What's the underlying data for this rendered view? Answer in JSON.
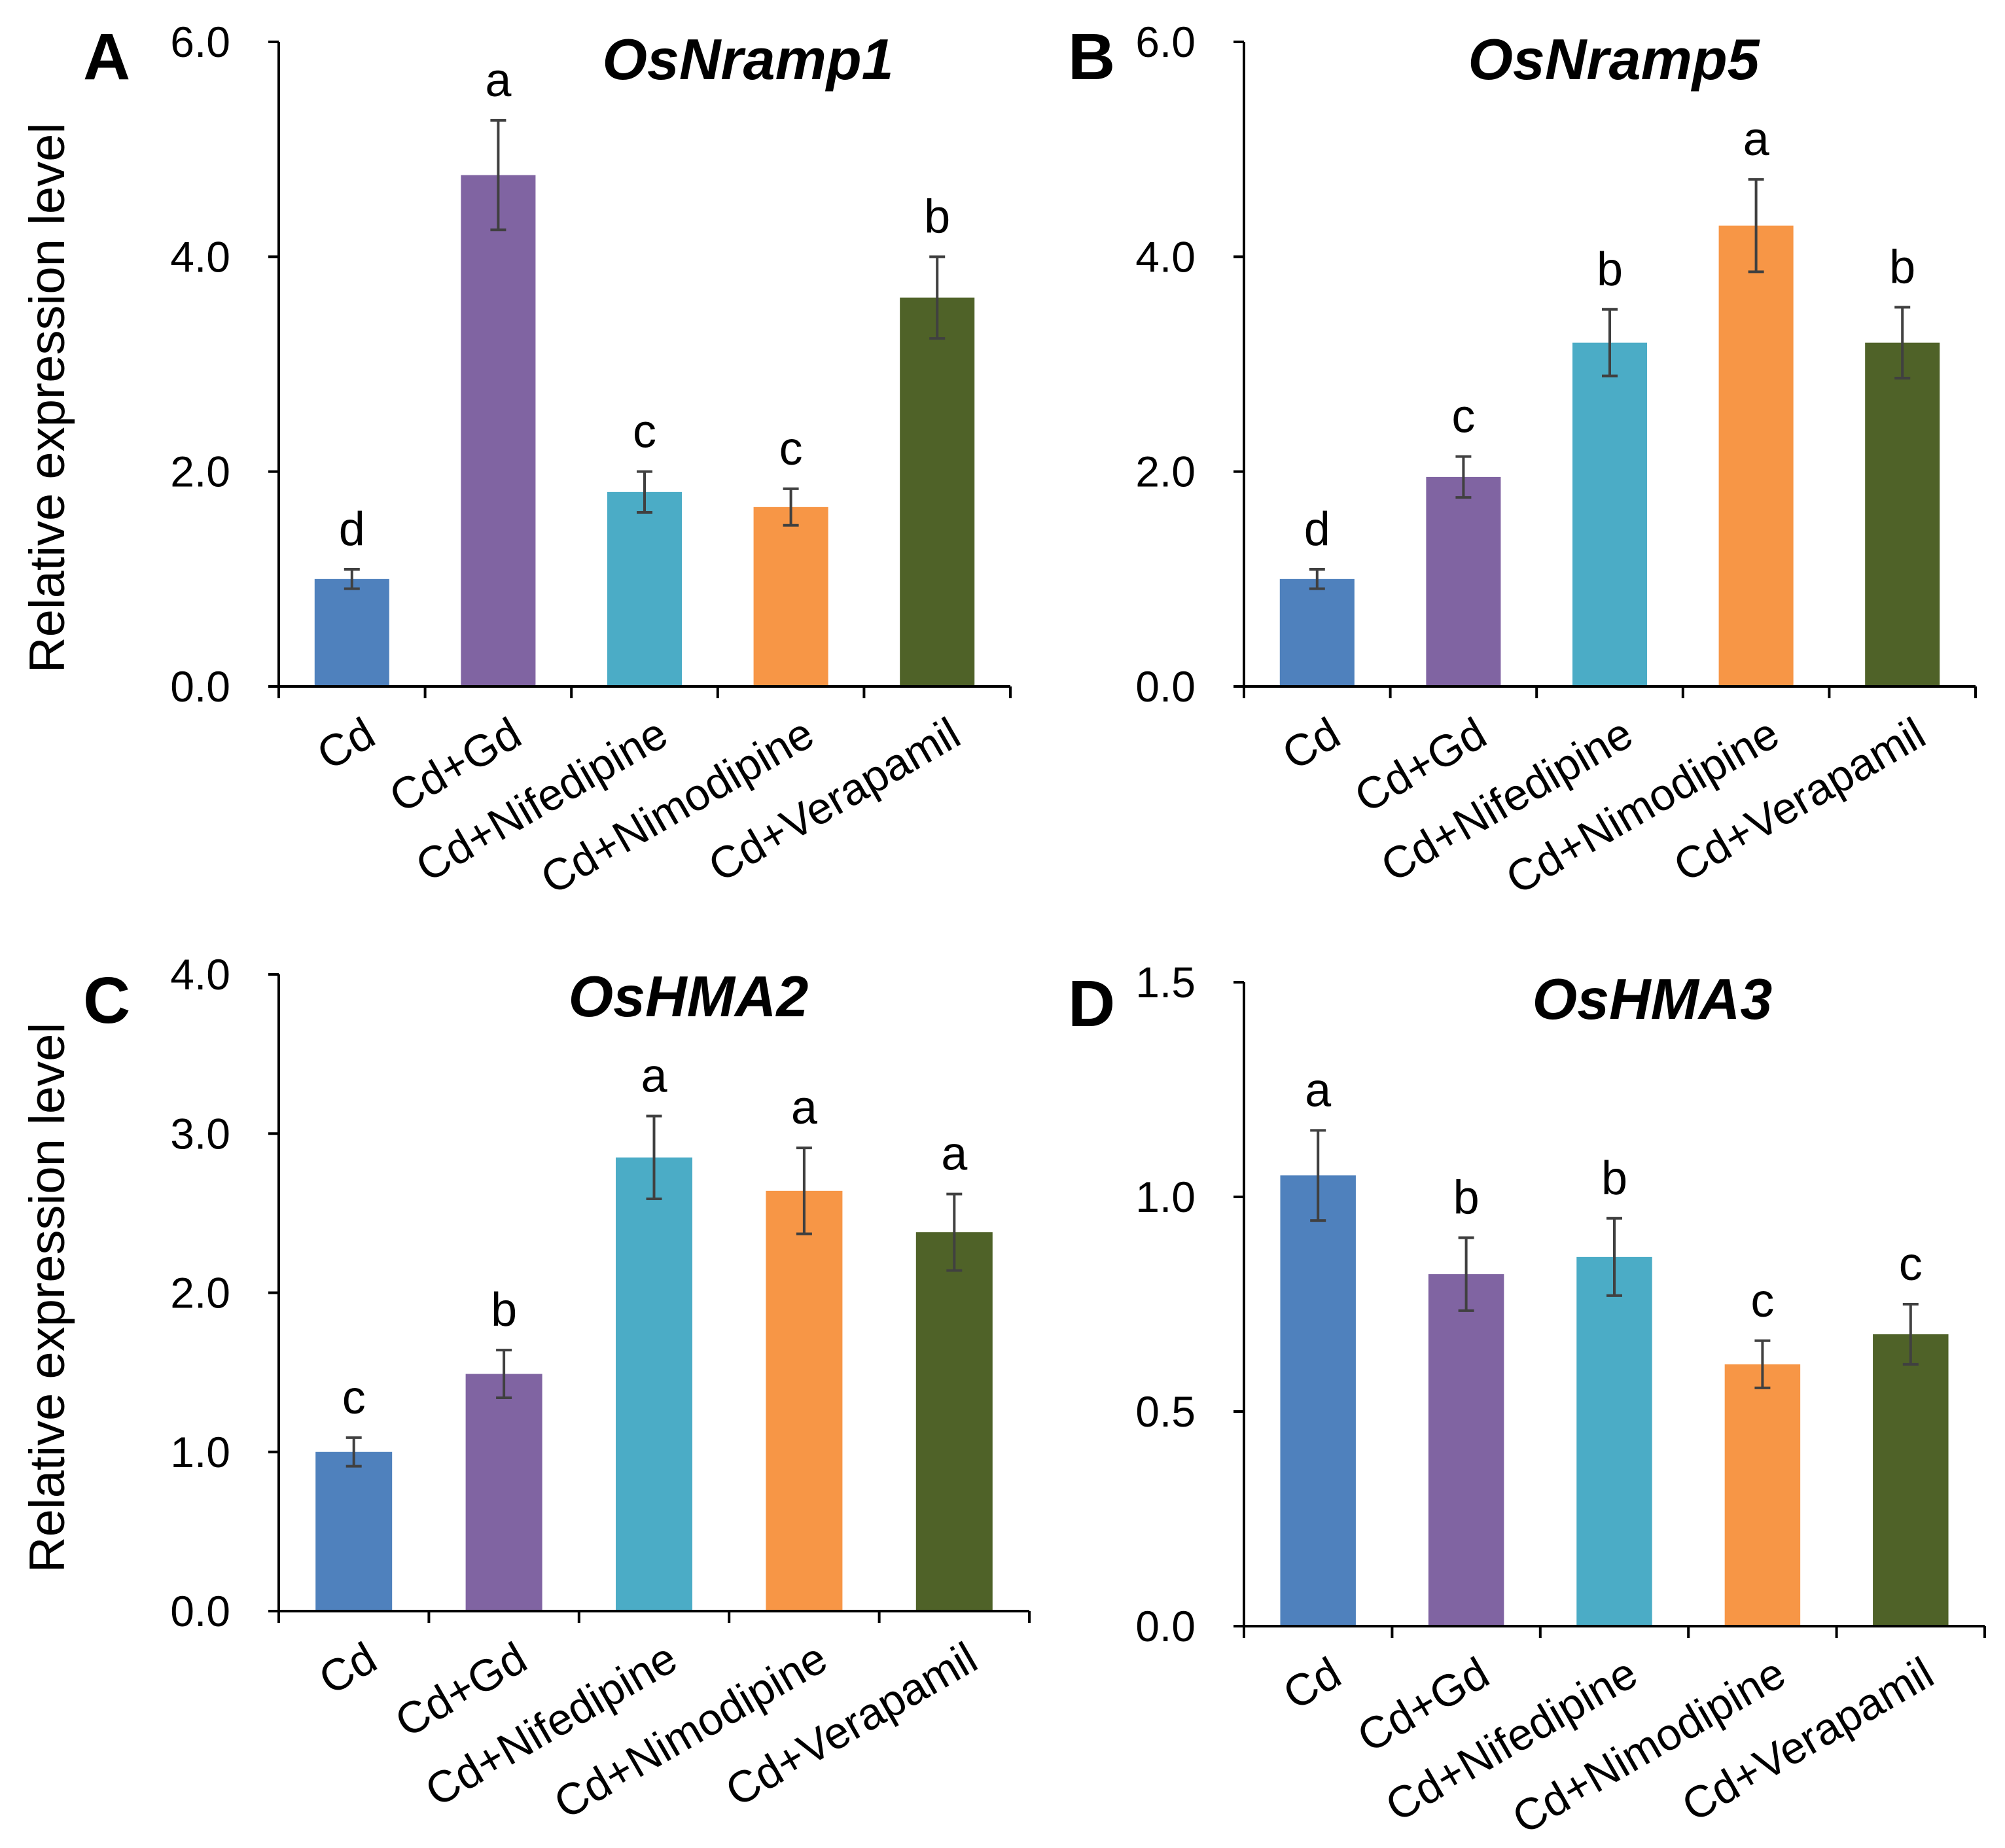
{
  "style": {
    "axis_color": "#000000",
    "error_bar_color": "#404040"
  },
  "chart_data": [
    {
      "panel": "A",
      "type": "bar",
      "title": "OsNramp1",
      "ylabel": "Relative expression level",
      "categories": [
        "Cd",
        "Cd+Gd",
        "Cd+Nifedipine",
        "Cd+Nimodipine",
        "Cd+Verapamil"
      ],
      "values": [
        1.0,
        4.76,
        1.81,
        1.67,
        3.62
      ],
      "errors": [
        0.09,
        0.51,
        0.19,
        0.17,
        0.38
      ],
      "significance": [
        "d",
        "a",
        "c",
        "c",
        "b"
      ],
      "ylim": [
        0,
        6
      ],
      "yticks": [
        0,
        2,
        4,
        6
      ],
      "ytick_labels": [
        "0.0",
        "2.0",
        "4.0",
        "6.0"
      ],
      "bar_colors": [
        "#4F81BD",
        "#8064A2",
        "#4BACC6",
        "#F79646",
        "#4F6228"
      ]
    },
    {
      "panel": "B",
      "type": "bar",
      "title": "OsNramp5",
      "categories": [
        "Cd",
        "Cd+Gd",
        "Cd+Nifedipine",
        "Cd+Nimodipine",
        "Cd+Verapamil"
      ],
      "values": [
        1.0,
        1.95,
        3.2,
        4.29,
        3.2
      ],
      "errors": [
        0.09,
        0.19,
        0.31,
        0.43,
        0.33
      ],
      "significance": [
        "d",
        "c",
        "b",
        "a",
        "b"
      ],
      "ylim": [
        0,
        6
      ],
      "yticks": [
        0,
        2,
        4,
        6
      ],
      "ytick_labels": [
        "0.0",
        "2.0",
        "4.0",
        "6.0"
      ],
      "bar_colors": [
        "#4F81BD",
        "#8064A2",
        "#4BACC6",
        "#F79646",
        "#4F6228"
      ]
    },
    {
      "panel": "C",
      "type": "bar",
      "title": "OsHMA2",
      "ylabel": "Relative expression level",
      "categories": [
        "Cd",
        "Cd+Gd",
        "Cd+Nifedipine",
        "Cd+Nimodipine",
        "Cd+Verapamil"
      ],
      "values": [
        1.0,
        1.49,
        2.85,
        2.64,
        2.38
      ],
      "errors": [
        0.09,
        0.15,
        0.26,
        0.27,
        0.24
      ],
      "significance": [
        "c",
        "b",
        "a",
        "a",
        "a"
      ],
      "ylim": [
        0,
        4
      ],
      "yticks": [
        0,
        1,
        2,
        3,
        4
      ],
      "ytick_labels": [
        "0.0",
        "1.0",
        "2.0",
        "3.0",
        "4.0"
      ],
      "bar_colors": [
        "#4F81BD",
        "#8064A2",
        "#4BACC6",
        "#F79646",
        "#4F6228"
      ]
    },
    {
      "panel": "D",
      "type": "bar",
      "title": "OsHMA3",
      "categories": [
        "Cd",
        "Cd+Gd",
        "Cd+Nifedipine",
        "Cd+Nimodipine",
        "Cd+Verapamil"
      ],
      "values": [
        1.05,
        0.82,
        0.86,
        0.61,
        0.68
      ],
      "errors": [
        0.105,
        0.085,
        0.09,
        0.055,
        0.07
      ],
      "significance": [
        "a",
        "b",
        "b",
        "c",
        "c"
      ],
      "ylim": [
        0,
        1.5
      ],
      "yticks": [
        0,
        0.5,
        1.0,
        1.5
      ],
      "ytick_labels": [
        "0.0",
        "0.5",
        "1.0",
        "1.5"
      ],
      "bar_colors": [
        "#4F81BD",
        "#8064A2",
        "#4BACC6",
        "#F79646",
        "#4F6228"
      ]
    }
  ]
}
